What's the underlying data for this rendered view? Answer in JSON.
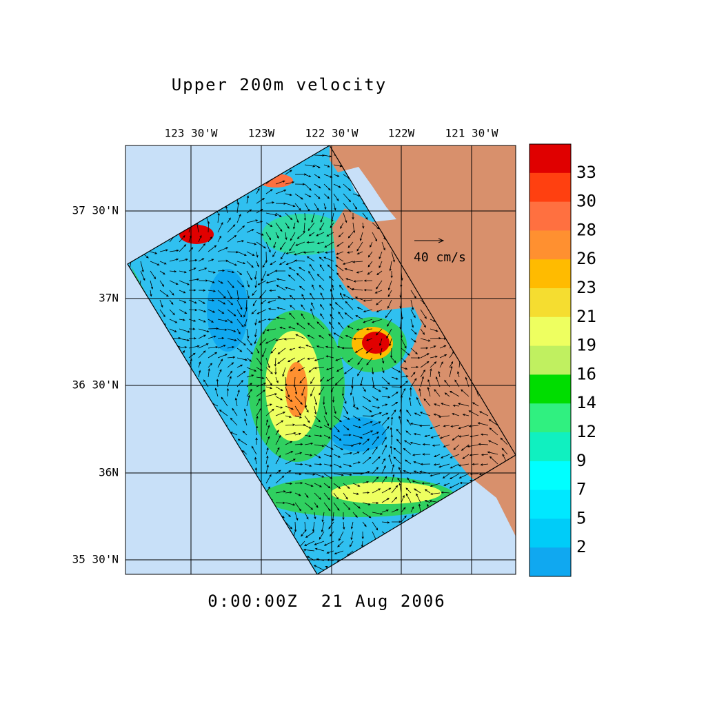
{
  "title": "Upper 200m velocity",
  "x_axis": {
    "ticks": [
      "123 30'W",
      "123W",
      "122 30'W",
      "122W",
      "121 30'W"
    ]
  },
  "y_axis": {
    "ticks": [
      "37 30'N",
      "37N",
      "36 30'N",
      "36N",
      "35 30'N"
    ]
  },
  "colorbar": {
    "colors": [
      "#e00000",
      "#ff4010",
      "#ff7040",
      "#ff9030",
      "#ffbb00",
      "#f5dd30",
      "#eeff60",
      "#c0f060",
      "#00dd00",
      "#30f080",
      "#10f0c0",
      "#00ffff",
      "#00e8ff",
      "#00ccf8",
      "#10a8f0"
    ],
    "labels": [
      "33",
      "30",
      "28",
      "26",
      "23",
      "21",
      "19",
      "16",
      "14",
      "12",
      "9",
      "7",
      "5",
      "2"
    ]
  },
  "reference_arrow": "40 cm/s",
  "timestamp": "0:00:00Z  21 Aug 2006"
}
